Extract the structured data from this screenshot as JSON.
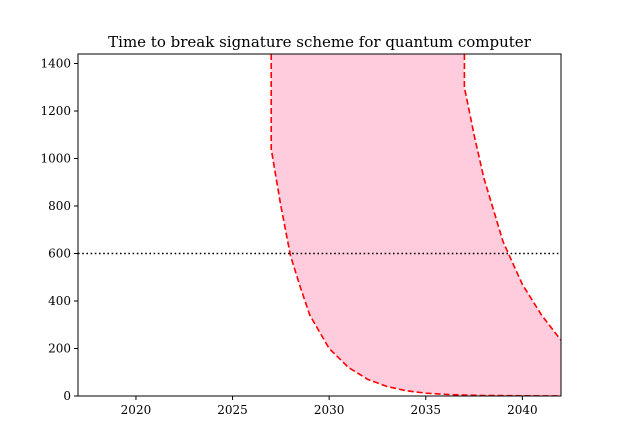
{
  "chart_data": {
    "type": "area",
    "title": "Time to break signature scheme for quantum computer",
    "xlabel": "",
    "ylabel": "",
    "xlim": [
      2017,
      2042
    ],
    "ylim": [
      0,
      1440
    ],
    "x_ticks": [
      2020,
      2025,
      2030,
      2035,
      2040
    ],
    "y_ticks": [
      0,
      200,
      400,
      600,
      800,
      1000,
      1200,
      1400
    ],
    "grid": false,
    "band": {
      "fill_color": "#ffccdd",
      "edge_color": "#ff0000",
      "edge_style": "dashed",
      "lower_edge": [
        {
          "x": 2027.0,
          "y": 1440
        },
        {
          "x": 2027.0,
          "y": 1040
        },
        {
          "x": 2027.5,
          "y": 800
        },
        {
          "x": 2028.0,
          "y": 590
        },
        {
          "x": 2028.5,
          "y": 460
        },
        {
          "x": 2029.0,
          "y": 340
        },
        {
          "x": 2030.0,
          "y": 200
        },
        {
          "x": 2031.0,
          "y": 120
        },
        {
          "x": 2032.0,
          "y": 70
        },
        {
          "x": 2033.0,
          "y": 40
        },
        {
          "x": 2034.0,
          "y": 22
        },
        {
          "x": 2035.0,
          "y": 12
        },
        {
          "x": 2036.0,
          "y": 7
        },
        {
          "x": 2037.0,
          "y": 4
        },
        {
          "x": 2038.0,
          "y": 2
        },
        {
          "x": 2040.0,
          "y": 1
        },
        {
          "x": 2042.0,
          "y": 0
        }
      ],
      "upper_edge": [
        {
          "x": 2037.0,
          "y": 1440
        },
        {
          "x": 2037.0,
          "y": 1300
        },
        {
          "x": 2037.5,
          "y": 1100
        },
        {
          "x": 2038.0,
          "y": 920
        },
        {
          "x": 2039.0,
          "y": 650
        },
        {
          "x": 2040.0,
          "y": 470
        },
        {
          "x": 2041.0,
          "y": 340
        },
        {
          "x": 2042.0,
          "y": 235
        }
      ]
    },
    "threshold_line": {
      "y": 600,
      "color": "#000000",
      "style": "dotted"
    }
  }
}
